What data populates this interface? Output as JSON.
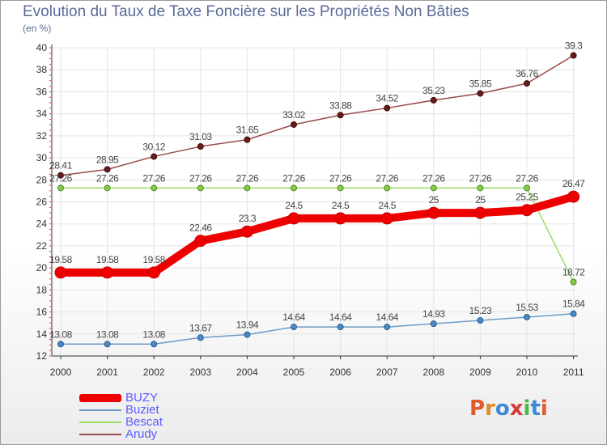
{
  "chart_data": {
    "type": "line",
    "title": "Evolution du Taux de Taxe Foncière sur les Propriétés Non Bâties",
    "unit_label": "(en %)",
    "categories": [
      "2000",
      "2001",
      "2002",
      "2003",
      "2004",
      "2005",
      "2006",
      "2007",
      "2008",
      "2009",
      "2010",
      "2011"
    ],
    "ylim": [
      12,
      40
    ],
    "yticks": [
      12,
      14,
      16,
      18,
      20,
      22,
      24,
      26,
      28,
      30,
      32,
      34,
      36,
      38,
      40
    ],
    "grid": true,
    "legend_position": "bottom-left",
    "series": [
      {
        "name": "BUZY",
        "color": "#ee0000",
        "width": 10,
        "markerFill": "#ee0000",
        "markerStroke": "#cc0000",
        "markerR": 7,
        "values": [
          19.58,
          19.58,
          19.58,
          22.46,
          23.3,
          24.5,
          24.5,
          24.5,
          25,
          25,
          25.25,
          26.47
        ],
        "labels": [
          "19.58",
          "19.58",
          "19.58",
          "22.46",
          "23.3",
          "24.5",
          "24.5",
          "24.5",
          "25",
          "25",
          "25.25",
          "26.47"
        ]
      },
      {
        "name": "Buziet",
        "color": "#6c9bc8",
        "width": 1.5,
        "markerFill": "#4a8ac8",
        "markerStroke": "#2a5a8a",
        "markerR": 3.5,
        "values": [
          13.08,
          13.08,
          13.08,
          13.67,
          13.94,
          14.64,
          14.64,
          14.64,
          14.93,
          15.23,
          15.53,
          15.84
        ],
        "labels": [
          "13.08",
          "13.08",
          "13.08",
          "13.67",
          "13.94",
          "14.64",
          "14.64",
          "14.64",
          "14.93",
          "15.23",
          "15.53",
          "15.84"
        ]
      },
      {
        "name": "Bescat",
        "color": "#99dd66",
        "width": 1.5,
        "markerFill": "#88cc44",
        "markerStroke": "#4a8a2a",
        "markerR": 3.5,
        "values": [
          27.26,
          27.26,
          27.26,
          27.26,
          27.26,
          27.26,
          27.26,
          27.26,
          27.26,
          27.26,
          27.26,
          18.72
        ],
        "labels": [
          "27.26",
          "27.26",
          "27.26",
          "27.26",
          "27.26",
          "27.26",
          "27.26",
          "27.26",
          "27.26",
          "27.26",
          "27.26",
          "18.72"
        ]
      },
      {
        "name": "Arudy",
        "color": "#9a4a4a",
        "width": 1.5,
        "markerFill": "#6a1a1a",
        "markerStroke": "#3a0a0a",
        "markerR": 3.5,
        "values": [
          28.41,
          28.95,
          30.12,
          31.03,
          31.65,
          33.02,
          33.88,
          34.52,
          35.23,
          35.85,
          36.76,
          39.3
        ],
        "labels": [
          "28.41",
          "28.95",
          "30.12",
          "31.03",
          "31.65",
          "33.02",
          "33.88",
          "34.52",
          "35.23",
          "35.85",
          "36.76",
          "39.3"
        ]
      }
    ]
  },
  "logo": {
    "text": "Proxiti",
    "colors": [
      "#e05a2a",
      "#e08a2a",
      "#3a8ad8",
      "#d83a3a",
      "#4ab84a",
      "#3a8ad8",
      "#e05a2a"
    ]
  }
}
